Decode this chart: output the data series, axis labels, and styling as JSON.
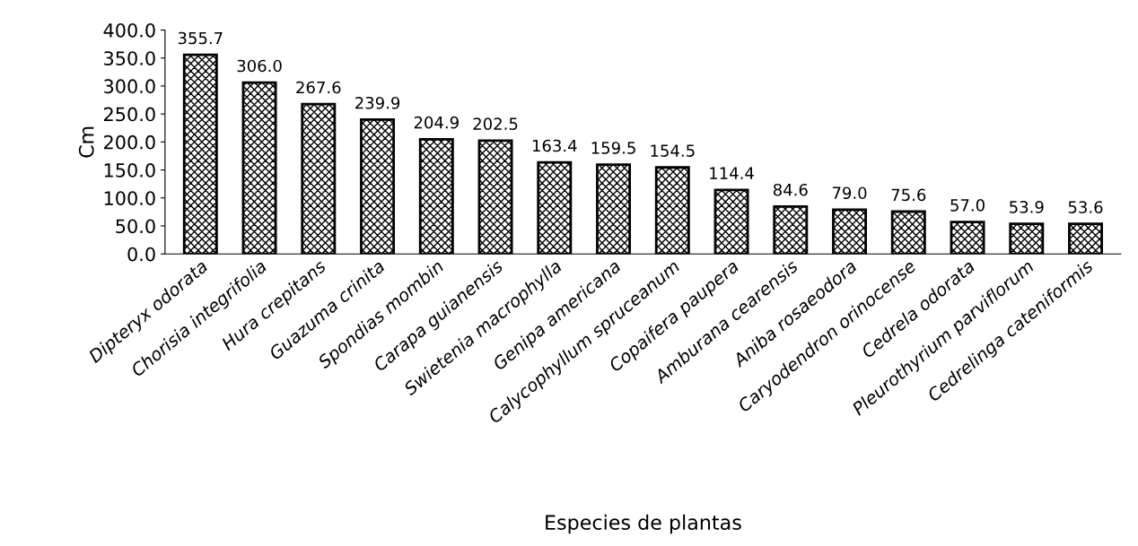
{
  "chart_data": {
    "type": "bar",
    "xlabel": "Especies de plantas",
    "ylabel": "Cm",
    "categories": [
      "Dipteryx odorata",
      "Chorisia integrifolia",
      "Hura crepitans",
      "Guazuma crinita",
      "Spondias mombin",
      "Carapa guianensis",
      "Swietenia macrophylla",
      "Genipa americana",
      "Calycophyllum spruceanum",
      "Copaifera paupera",
      "Amburana cearensis",
      "Aniba rosaeodora",
      "Caryodendron orinocense",
      "Cedrela odorata",
      "Pleurothyrium parviflorum",
      "Cedrelinga cateniformis"
    ],
    "values": [
      355.7,
      306.0,
      267.6,
      239.9,
      204.9,
      202.5,
      163.4,
      159.5,
      154.5,
      114.4,
      84.6,
      79.0,
      75.6,
      57.0,
      53.9,
      53.6
    ],
    "value_labels": [
      "355.7",
      "306.0",
      "267.6",
      "239.9",
      "204.9",
      "202.5",
      "163.4",
      "159.5",
      "154.5",
      "114.4",
      "84.6",
      "79.0",
      "75.6",
      "57.0",
      "53.9",
      "53.6"
    ],
    "color": "#000000",
    "ylim": [
      0,
      400
    ],
    "yticks": [
      {
        "value": 0,
        "label": "0.0"
      },
      {
        "value": 50,
        "label": "50.0"
      },
      {
        "value": 100,
        "label": "100.0"
      },
      {
        "value": 150,
        "label": "150.0"
      },
      {
        "value": 200,
        "label": "200.0"
      },
      {
        "value": 250,
        "label": "250.0"
      },
      {
        "value": 300,
        "label": "300.0"
      },
      {
        "value": 350,
        "label": "350.0"
      },
      {
        "value": 400,
        "label": "400.0"
      }
    ],
    "grid": false,
    "legend": false
  }
}
